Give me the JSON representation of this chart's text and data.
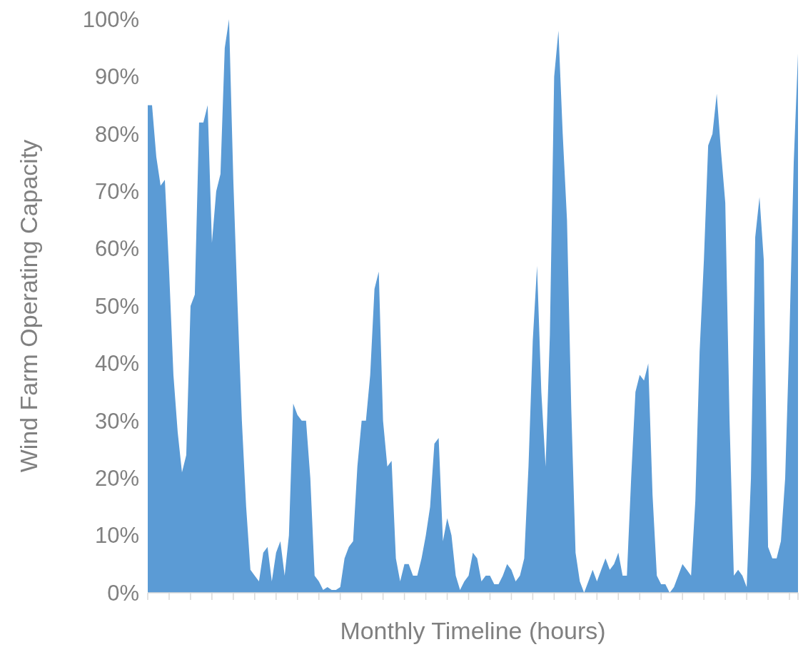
{
  "chart_data": {
    "type": "area",
    "xlabel": "Monthly Timeline (hours)",
    "ylabel": "Wind Farm Operating Capacity",
    "categories": [
      null,
      null,
      null,
      null,
      null,
      null,
      null,
      null,
      null,
      null,
      null,
      null,
      null,
      null,
      null,
      null,
      null,
      null,
      null,
      null,
      null,
      null,
      null,
      null,
      null,
      null,
      null,
      null,
      null,
      null,
      null,
      null,
      null,
      null,
      null,
      null,
      null,
      null,
      null,
      null,
      null,
      null,
      null,
      null,
      null,
      null,
      null,
      null,
      null,
      null,
      null,
      null,
      null,
      null,
      null,
      null,
      null,
      null,
      null,
      null,
      null,
      null,
      null,
      null,
      null,
      null,
      null,
      null,
      null,
      null,
      null,
      null,
      null,
      null,
      null,
      null,
      null,
      null,
      null,
      null,
      null,
      null,
      null,
      null,
      null,
      null,
      null,
      null,
      null,
      null,
      null,
      null,
      null,
      null,
      null,
      null,
      null,
      null,
      null,
      null,
      null,
      null,
      null,
      null,
      null,
      null,
      null,
      null,
      null,
      null,
      null,
      null,
      null,
      null,
      null,
      null,
      null,
      null,
      null,
      null,
      null,
      null,
      null,
      null,
      null,
      null,
      null,
      null,
      null,
      null,
      null,
      null,
      null,
      null,
      null,
      null,
      null,
      null,
      null,
      null,
      null,
      null,
      null,
      null,
      null,
      null,
      null,
      null,
      null,
      null,
      null,
      null,
      null
    ],
    "series": [
      {
        "color": "#5b9bd5",
        "values": [
          85,
          85,
          76,
          71,
          72,
          56,
          38,
          28,
          21,
          24,
          50,
          52,
          82,
          82,
          85,
          61,
          70,
          73,
          95,
          100,
          72,
          50,
          30,
          15,
          4,
          3,
          2,
          7,
          8,
          2,
          7,
          9,
          3,
          10,
          33,
          31,
          30,
          30,
          20,
          3,
          2,
          0.5,
          1,
          0.5,
          0.5,
          1,
          6,
          8,
          9,
          22,
          30,
          30,
          38,
          53,
          56,
          30,
          22,
          23,
          6,
          2,
          5,
          5,
          3,
          3,
          6,
          10,
          15,
          26,
          27,
          9,
          13,
          10,
          3,
          0.5,
          2,
          3,
          7,
          6,
          2,
          3,
          3,
          1.5,
          1.5,
          3,
          5,
          4,
          2,
          3,
          6,
          22,
          44,
          57,
          35,
          22,
          45,
          90,
          98,
          80,
          65,
          32,
          7,
          2,
          0,
          2,
          4,
          2,
          4,
          6,
          4,
          5,
          7,
          3,
          3,
          20,
          35,
          38,
          37,
          40,
          17,
          3,
          1.5,
          1.5,
          0,
          1,
          3,
          5,
          4,
          3,
          16,
          42,
          58,
          78,
          80,
          87,
          77,
          68,
          30,
          3,
          4,
          3,
          1,
          20,
          62,
          69,
          58,
          8,
          6,
          6,
          9,
          20,
          45,
          75,
          94
        ]
      }
    ],
    "ylim": [
      0,
      100
    ],
    "yticks": [
      {
        "value": 0,
        "label": "0%"
      },
      {
        "value": 10,
        "label": "10%"
      },
      {
        "value": 20,
        "label": "20%"
      },
      {
        "value": 30,
        "label": "30%"
      },
      {
        "value": 40,
        "label": "40%"
      },
      {
        "value": 50,
        "label": "50%"
      },
      {
        "value": 60,
        "label": "60%"
      },
      {
        "value": 70,
        "label": "70%"
      },
      {
        "value": 80,
        "label": "80%"
      },
      {
        "value": 90,
        "label": "90%"
      },
      {
        "value": 100,
        "label": "100%"
      }
    ],
    "grid": false
  }
}
